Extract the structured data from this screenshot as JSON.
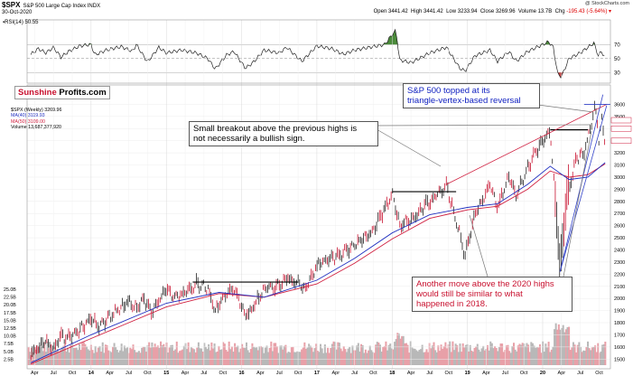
{
  "header": {
    "symbol": "$SPX",
    "name": "S&P 500 Large Cap Index  INDX",
    "date": "30-Oct-2020",
    "open_label": "Open",
    "open": "3441.42",
    "high_label": "High",
    "high": "3441.42",
    "low_label": "Low",
    "low": "3233.94",
    "close_label": "Close",
    "close": "3269.96",
    "volume_label": "Volume",
    "volume": "13.7B",
    "chg_label": "Chg",
    "chg": "-195.43 (-5.64%) ▾",
    "credit": "@ StockCharts.com"
  },
  "rsi": {
    "label": "RSI(14) 50.55",
    "ticks": [
      "70",
      "50",
      "30"
    ]
  },
  "logo": {
    "part1": "Sunshine",
    "part2": "Profits.com"
  },
  "legend": {
    "price": "$SPX (Weekly) 3269.96",
    "ma40": "MA(40) 3119.93",
    "ma50": "MA(50) 3109.00",
    "volume": "Volume 13,687,377,920"
  },
  "annotations": {
    "topped": [
      "S&P 500 topped at its",
      "triangle-vertex-based reversal"
    ],
    "breakout": [
      "Small breakout above the previous highs is",
      "not necessarily a bullish sign."
    ],
    "another": [
      "Another move above the 2020 highs",
      "would still be similar to what",
      "happened in 2018."
    ]
  },
  "colors": {
    "blue_text": "#1020c0",
    "red_text": "#c8102e",
    "ma40": "#2030c0",
    "ma50": "#d02040",
    "rsi_fill": "#4a8a3a"
  },
  "chart_data": {
    "type": "line",
    "title": "$SPX S&P 500 Large Cap Index",
    "x_ticks": [
      "Apr",
      "Jul",
      "Oct",
      "14",
      "Apr",
      "Jul",
      "Oct",
      "15",
      "Apr",
      "Jul",
      "Oct",
      "16",
      "Apr",
      "Jul",
      "Oct",
      "17",
      "Apr",
      "Jul",
      "Oct",
      "18",
      "Apr",
      "Jul",
      "Oct",
      "19",
      "Apr",
      "Jul",
      "Oct",
      "20",
      "Apr",
      "Jul",
      "Oct"
    ],
    "x_tick_t": [
      2013.25,
      2013.5,
      2013.75,
      2014,
      2014.25,
      2014.5,
      2014.75,
      2015,
      2015.25,
      2015.5,
      2015.75,
      2016,
      2016.25,
      2016.5,
      2016.75,
      2017,
      2017.25,
      2017.5,
      2017.75,
      2018,
      2018.25,
      2018.5,
      2018.75,
      2019,
      2019.25,
      2019.5,
      2019.75,
      2020,
      2020.25,
      2020.5,
      2020.75
    ],
    "y_ticks": [
      3600,
      3500,
      3400,
      3300,
      3200,
      3100,
      3000,
      2900,
      2800,
      2700,
      2600,
      2500,
      2400,
      2300,
      2200,
      2100,
      2000,
      1900,
      1800,
      1700,
      1600,
      1500
    ],
    "ylim": [
      1450,
      3700
    ],
    "price_points": [
      [
        2013.2,
        1540
      ],
      [
        2013.4,
        1640
      ],
      [
        2013.5,
        1600
      ],
      [
        2013.6,
        1690
      ],
      [
        2013.75,
        1680
      ],
      [
        2014.0,
        1840
      ],
      [
        2014.1,
        1760
      ],
      [
        2014.3,
        1880
      ],
      [
        2014.5,
        1970
      ],
      [
        2014.6,
        1920
      ],
      [
        2014.7,
        2000
      ],
      [
        2014.8,
        1880
      ],
      [
        2015.0,
        2080
      ],
      [
        2015.1,
        2000
      ],
      [
        2015.4,
        2120
      ],
      [
        2015.55,
        2090
      ],
      [
        2015.65,
        1900
      ],
      [
        2015.75,
        2000
      ],
      [
        2015.9,
        2090
      ],
      [
        2016.05,
        1860
      ],
      [
        2016.12,
        1900
      ],
      [
        2016.3,
        2080
      ],
      [
        2016.5,
        2100
      ],
      [
        2016.6,
        2180
      ],
      [
        2016.85,
        2090
      ],
      [
        2017.0,
        2270
      ],
      [
        2017.3,
        2360
      ],
      [
        2017.5,
        2440
      ],
      [
        2017.75,
        2560
      ],
      [
        2018.0,
        2860
      ],
      [
        2018.1,
        2600
      ],
      [
        2018.3,
        2680
      ],
      [
        2018.5,
        2800
      ],
      [
        2018.72,
        2930
      ],
      [
        2018.85,
        2650
      ],
      [
        2018.97,
        2350
      ],
      [
        2019.1,
        2700
      ],
      [
        2019.3,
        2940
      ],
      [
        2019.4,
        2740
      ],
      [
        2019.55,
        3020
      ],
      [
        2019.65,
        2850
      ],
      [
        2019.8,
        3080
      ],
      [
        2020.0,
        3300
      ],
      [
        2020.1,
        3380
      ],
      [
        2020.18,
        2700
      ],
      [
        2020.23,
        2240
      ],
      [
        2020.32,
        2850
      ],
      [
        2020.45,
        3150
      ],
      [
        2020.55,
        3200
      ],
      [
        2020.65,
        3450
      ],
      [
        2020.7,
        3590
      ],
      [
        2020.75,
        3300
      ],
      [
        2020.78,
        3480
      ],
      [
        2020.83,
        3270
      ]
    ],
    "ma40_points": [
      [
        2013.2,
        1470
      ],
      [
        2014.0,
        1700
      ],
      [
        2015.0,
        1960
      ],
      [
        2015.7,
        2050
      ],
      [
        2016.3,
        2010
      ],
      [
        2017.0,
        2150
      ],
      [
        2017.5,
        2330
      ],
      [
        2018.0,
        2540
      ],
      [
        2018.5,
        2690
      ],
      [
        2019.0,
        2750
      ],
      [
        2019.4,
        2780
      ],
      [
        2019.8,
        2940
      ],
      [
        2020.1,
        3090
      ],
      [
        2020.35,
        2980
      ],
      [
        2020.6,
        3000
      ],
      [
        2020.83,
        3120
      ]
    ],
    "ma50_points": [
      [
        2013.2,
        1460
      ],
      [
        2014.0,
        1670
      ],
      [
        2015.0,
        1930
      ],
      [
        2015.7,
        2040
      ],
      [
        2016.3,
        2010
      ],
      [
        2017.0,
        2120
      ],
      [
        2017.5,
        2290
      ],
      [
        2018.0,
        2490
      ],
      [
        2018.5,
        2660
      ],
      [
        2019.0,
        2730
      ],
      [
        2019.4,
        2760
      ],
      [
        2019.8,
        2900
      ],
      [
        2020.1,
        3050
      ],
      [
        2020.35,
        3000
      ],
      [
        2020.6,
        3020
      ],
      [
        2020.83,
        3110
      ]
    ],
    "rsi_points": [
      [
        2013.2,
        56
      ],
      [
        2013.3,
        64
      ],
      [
        2013.4,
        58
      ],
      [
        2013.5,
        66
      ],
      [
        2013.6,
        52
      ],
      [
        2013.7,
        60
      ],
      [
        2013.85,
        68
      ],
      [
        2014.0,
        70
      ],
      [
        2014.05,
        55
      ],
      [
        2014.2,
        62
      ],
      [
        2014.4,
        67
      ],
      [
        2014.55,
        60
      ],
      [
        2014.6,
        70
      ],
      [
        2014.75,
        45
      ],
      [
        2014.9,
        66
      ],
      [
        2015.0,
        58
      ],
      [
        2015.2,
        62
      ],
      [
        2015.4,
        58
      ],
      [
        2015.55,
        50
      ],
      [
        2015.65,
        35
      ],
      [
        2015.8,
        55
      ],
      [
        2015.9,
        60
      ],
      [
        2016.05,
        36
      ],
      [
        2016.15,
        44
      ],
      [
        2016.3,
        62
      ],
      [
        2016.5,
        58
      ],
      [
        2016.6,
        66
      ],
      [
        2016.8,
        46
      ],
      [
        2017.0,
        68
      ],
      [
        2017.2,
        64
      ],
      [
        2017.35,
        56
      ],
      [
        2017.5,
        62
      ],
      [
        2017.7,
        66
      ],
      [
        2017.9,
        70
      ],
      [
        2018.0,
        84
      ],
      [
        2018.05,
        90
      ],
      [
        2018.1,
        48
      ],
      [
        2018.25,
        44
      ],
      [
        2018.5,
        58
      ],
      [
        2018.72,
        66
      ],
      [
        2018.9,
        36
      ],
      [
        2018.97,
        32
      ],
      [
        2019.1,
        54
      ],
      [
        2019.3,
        62
      ],
      [
        2019.4,
        46
      ],
      [
        2019.55,
        60
      ],
      [
        2019.65,
        46
      ],
      [
        2019.8,
        60
      ],
      [
        2020.0,
        70
      ],
      [
        2020.08,
        74
      ],
      [
        2020.14,
        66
      ],
      [
        2020.2,
        28
      ],
      [
        2020.25,
        24
      ],
      [
        2020.35,
        50
      ],
      [
        2020.5,
        58
      ],
      [
        2020.6,
        66
      ],
      [
        2020.68,
        72
      ],
      [
        2020.74,
        54
      ],
      [
        2020.78,
        60
      ],
      [
        2020.83,
        51
      ]
    ],
    "resistance_levels": [
      {
        "y": 2135,
        "t0": 2015.35,
        "t1": 2016.75
      },
      {
        "y": 2880,
        "t0": 2018.0,
        "t1": 2018.85
      },
      {
        "y": 3390,
        "t0": 2020.1,
        "t1": 2020.6
      }
    ]
  }
}
